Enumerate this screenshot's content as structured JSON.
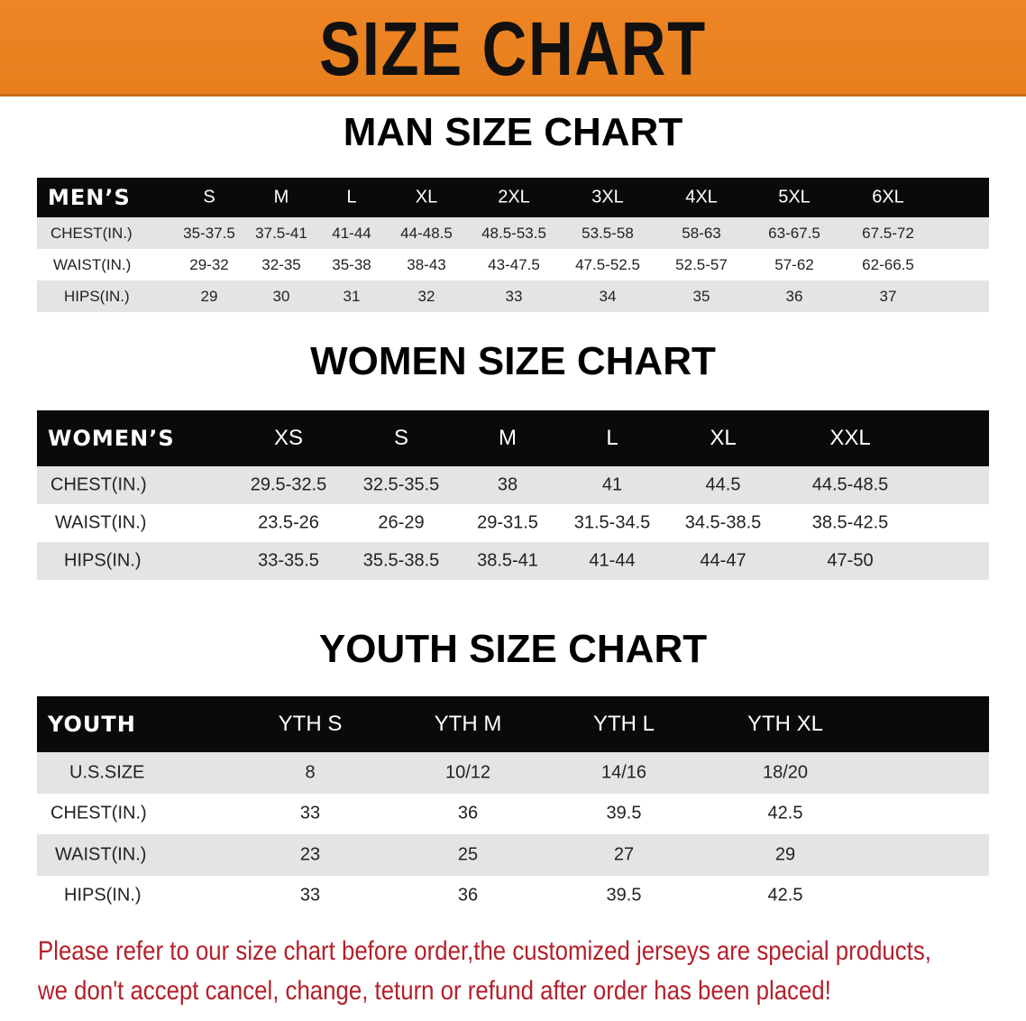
{
  "banner": {
    "title": "SIZE CHART",
    "color": "#e8801e"
  },
  "men": {
    "title": "MAN SIZE CHART",
    "header_label": "MEN’S",
    "sizes": [
      "S",
      "M",
      "L",
      "XL",
      "2XL",
      "3XL",
      "4XL",
      "5XL",
      "6XL"
    ],
    "rows": [
      {
        "label": "CHEST(IN.)",
        "values": [
          "35-37.5",
          "37.5-41",
          "41-44",
          "44-48.5",
          "48.5-53.5",
          "53.5-58",
          "58-63",
          "63-67.5",
          "67.5-72"
        ]
      },
      {
        "label": "WAIST(IN.)",
        "values": [
          "29-32",
          "32-35",
          "35-38",
          "38-43",
          "43-47.5",
          "47.5-52.5",
          "52.5-57",
          "57-62",
          "62-66.5"
        ]
      },
      {
        "label": "HIPS(IN.)",
        "values": [
          "29",
          "30",
          "31",
          "32",
          "33",
          "34",
          "35",
          "36",
          "37"
        ]
      }
    ]
  },
  "women": {
    "title": "WOMEN SIZE CHART",
    "header_label": "WOMEN’S",
    "sizes": [
      "XS",
      "S",
      "M",
      "L",
      "XL",
      "XXL"
    ],
    "rows": [
      {
        "label": "CHEST(IN.)",
        "values": [
          "29.5-32.5",
          "32.5-35.5",
          "38",
          "41",
          "44.5",
          "44.5-48.5"
        ]
      },
      {
        "label": "WAIST(IN.)",
        "values": [
          "23.5-26",
          "26-29",
          "29-31.5",
          "31.5-34.5",
          "34.5-38.5",
          "38.5-42.5"
        ]
      },
      {
        "label": "HIPS(IN.)",
        "values": [
          "33-35.5",
          "35.5-38.5",
          "38.5-41",
          "41-44",
          "44-47",
          "47-50"
        ]
      }
    ]
  },
  "youth": {
    "title": "YOUTH SIZE CHART",
    "header_label": "YOUTH",
    "sizes": [
      "YTH S",
      "YTH M",
      "YTH L",
      "YTH XL"
    ],
    "rows": [
      {
        "label": "U.S.SIZE",
        "values": [
          "8",
          "10/12",
          "14/16",
          "18/20"
        ]
      },
      {
        "label": "CHEST(IN.)",
        "values": [
          "33",
          "36",
          "39.5",
          "42.5"
        ]
      },
      {
        "label": "WAIST(IN.)",
        "values": [
          "23",
          "25",
          "27",
          "29"
        ]
      },
      {
        "label": "HIPS(IN.)",
        "values": [
          "33",
          "36",
          "39.5",
          "42.5"
        ]
      }
    ]
  },
  "notice": {
    "line1": "Please refer to our size chart before order,the customized jerseys are special products,",
    "line2": "we don't accept cancel, change, teturn or refund after order has been placed!",
    "color": "#b3202a"
  }
}
